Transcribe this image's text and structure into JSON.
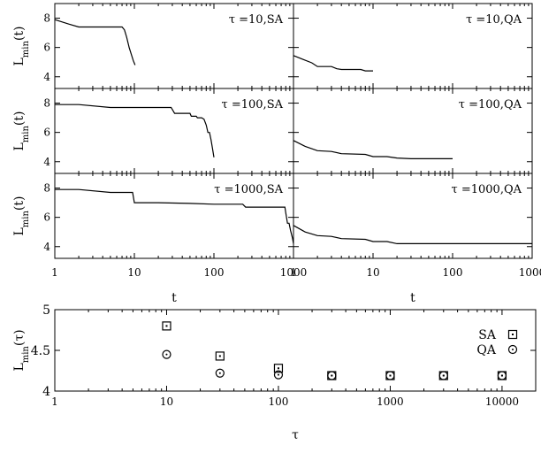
{
  "chart_data": [
    {
      "type": "line",
      "label": "τ =10,SA",
      "xscale": "log",
      "xlim": [
        1,
        1000
      ],
      "ylim": [
        3.2,
        9
      ],
      "yticks": [
        4,
        6,
        8
      ],
      "ylabel": "L",
      "ylabel_sub": "min",
      "ylabel_tail": "(t)",
      "x": [
        1,
        1.5,
        2,
        3,
        5,
        7,
        7.5,
        8,
        8.6,
        9.2,
        9.7,
        10.2
      ],
      "y": [
        7.9,
        7.6,
        7.4,
        7.4,
        7.4,
        7.4,
        7.2,
        6.7,
        6.0,
        5.5,
        5.1,
        4.8
      ]
    },
    {
      "type": "line",
      "label": "τ =10,QA",
      "xscale": "log",
      "xlim": [
        1,
        1000
      ],
      "ylim": [
        3.2,
        9
      ],
      "x": [
        1,
        1.3,
        1.7,
        2,
        2.5,
        3,
        3.5,
        4,
        6,
        7,
        8,
        10
      ],
      "y": [
        5.45,
        5.2,
        4.95,
        4.7,
        4.7,
        4.7,
        4.55,
        4.5,
        4.5,
        4.5,
        4.4,
        4.4
      ]
    },
    {
      "type": "line",
      "label": "τ =100,SA",
      "xscale": "log",
      "xlim": [
        1,
        1000
      ],
      "ylim": [
        3.2,
        9
      ],
      "yticks": [
        4,
        6,
        8
      ],
      "ylabel": "L",
      "ylabel_sub": "min",
      "ylabel_tail": "(t)",
      "x": [
        1,
        2,
        5,
        10,
        20,
        29,
        32,
        50,
        52,
        60,
        62,
        70,
        75,
        80,
        84,
        88,
        92,
        96,
        100
      ],
      "y": [
        7.9,
        7.9,
        7.7,
        7.7,
        7.7,
        7.7,
        7.3,
        7.3,
        7.1,
        7.1,
        7.0,
        7.0,
        6.9,
        6.5,
        6.0,
        6.0,
        5.5,
        4.9,
        4.3
      ]
    },
    {
      "type": "line",
      "label": "τ =100,QA",
      "xscale": "log",
      "xlim": [
        1,
        1000
      ],
      "ylim": [
        3.2,
        9
      ],
      "x": [
        1,
        1.4,
        2,
        3,
        4,
        8,
        10,
        15,
        20,
        30,
        50,
        100
      ],
      "y": [
        5.45,
        5.05,
        4.75,
        4.7,
        4.55,
        4.5,
        4.35,
        4.35,
        4.25,
        4.2,
        4.2,
        4.2
      ]
    },
    {
      "type": "line",
      "label": "τ =1000,SA",
      "xscale": "log",
      "xlim": [
        1,
        1000
      ],
      "ylim": [
        3.2,
        9
      ],
      "yticks": [
        4,
        6,
        8
      ],
      "ylabel": "L",
      "ylabel_sub": "min",
      "ylabel_tail": "(t)",
      "x": [
        1,
        2,
        5,
        9.5,
        10,
        20,
        50,
        100,
        230,
        250,
        500,
        780,
        800,
        840,
        880,
        920,
        970,
        1000
      ],
      "y": [
        7.9,
        7.9,
        7.7,
        7.7,
        7.0,
        7.0,
        6.95,
        6.9,
        6.9,
        6.7,
        6.7,
        6.7,
        6.3,
        5.6,
        5.6,
        5.1,
        4.6,
        4.2
      ]
    },
    {
      "type": "line",
      "label": "τ =1000,QA",
      "xscale": "log",
      "xlim": [
        1,
        1000
      ],
      "ylim": [
        3.2,
        9
      ],
      "x": [
        1,
        1.4,
        2,
        3,
        4,
        8,
        10,
        15,
        20,
        50,
        100,
        300,
        1000
      ],
      "y": [
        5.45,
        5.0,
        4.75,
        4.7,
        4.55,
        4.5,
        4.35,
        4.35,
        4.2,
        4.2,
        4.2,
        4.2,
        4.2
      ]
    },
    {
      "type": "scatter",
      "xscale": "log",
      "xlim": [
        1,
        20000
      ],
      "ylim": [
        4,
        5
      ],
      "yticks": [
        4,
        4.5,
        5
      ],
      "ytick_labels": [
        "4",
        "4.5",
        "5"
      ],
      "xticks": [
        1,
        10,
        100,
        1000,
        10000
      ],
      "xtick_labels": [
        "1",
        "10",
        "100",
        "1000",
        "10000"
      ],
      "xlabel": "τ",
      "ylabel": "L",
      "ylabel_sub": "min",
      "ylabel_tail": "(τ)",
      "legend": "top-right",
      "series": [
        {
          "name": "SA",
          "marker": "square",
          "x": [
            10,
            30,
            100,
            300,
            1000,
            3000,
            10000
          ],
          "y": [
            4.8,
            4.43,
            4.28,
            4.19,
            4.19,
            4.19,
            4.19
          ]
        },
        {
          "name": "QA",
          "marker": "circle",
          "x": [
            10,
            30,
            100,
            300,
            1000,
            3000,
            10000
          ],
          "y": [
            4.45,
            4.22,
            4.2,
            4.19,
            4.19,
            4.19,
            4.19
          ]
        }
      ]
    }
  ],
  "top_axes": {
    "xticks": [
      1,
      10,
      100,
      1000
    ],
    "xtick_labels": [
      "1",
      "10",
      "100",
      "1000"
    ],
    "xlabel": "t"
  }
}
